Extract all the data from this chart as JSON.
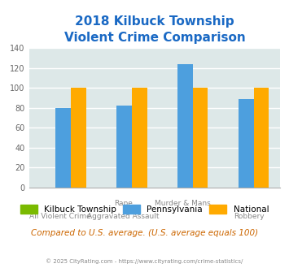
{
  "title": "2018 Kilbuck Township\nViolent Crime Comparison",
  "x_labels_line1": [
    "",
    "Rape",
    "Murder & Mans...",
    ""
  ],
  "x_labels_line2": [
    "All Violent Crime",
    "Aggravated Assault",
    "",
    "Robbery"
  ],
  "series": {
    "Kilbuck Township": [
      0,
      0,
      0,
      0
    ],
    "Pennsylvania": [
      80,
      82,
      124,
      89
    ],
    "National": [
      100,
      100,
      100,
      100
    ]
  },
  "colors": {
    "Kilbuck Township": "#7aba00",
    "Pennsylvania": "#4d9fde",
    "National": "#ffaa00"
  },
  "ylim": [
    0,
    140
  ],
  "yticks": [
    0,
    20,
    40,
    60,
    80,
    100,
    120,
    140
  ],
  "title_color": "#1a69c4",
  "title_fontsize": 11,
  "background_color": "#dde8e8",
  "grid_color": "#ffffff",
  "footer_text": "© 2025 CityRating.com - https://www.cityrating.com/crime-statistics/",
  "compare_text": "Compared to U.S. average. (U.S. average equals 100)",
  "bar_width": 0.25
}
